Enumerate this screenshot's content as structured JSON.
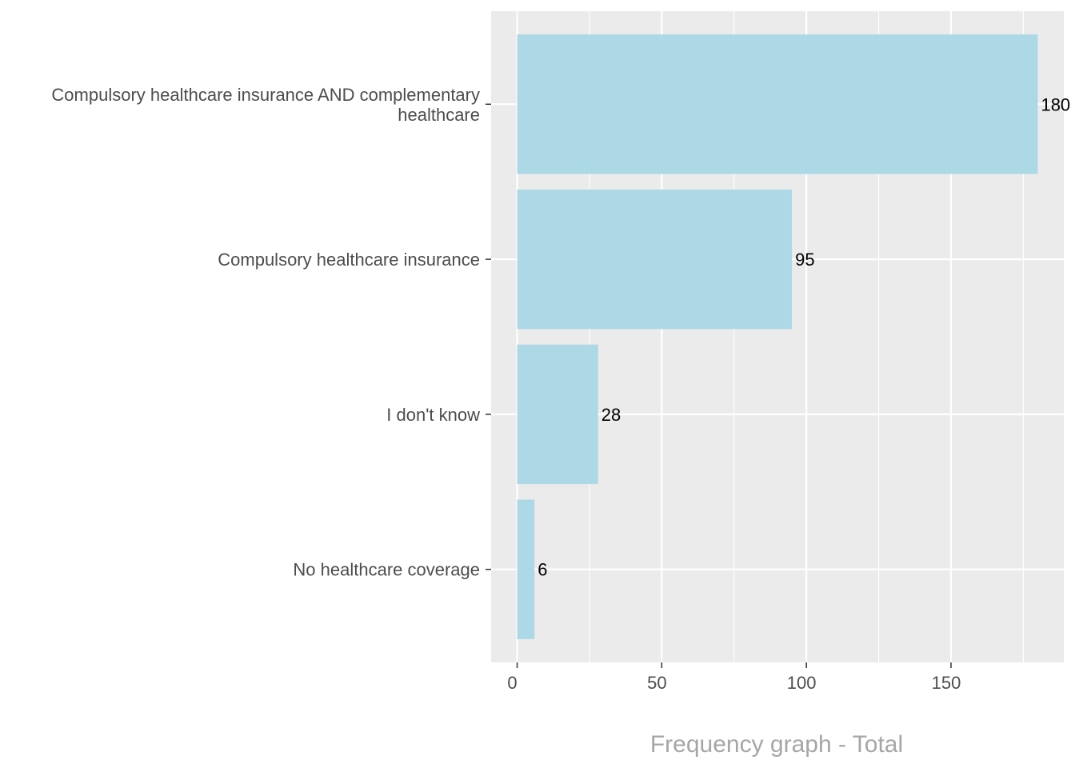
{
  "chart_data": {
    "type": "bar",
    "orientation": "horizontal",
    "title": "",
    "xlabel": "Frequency graph - Total",
    "ylabel": "",
    "categories": [
      "Compulsory healthcare insurance AND complementary healthcare",
      "Compulsory healthcare insurance",
      "I don't know",
      "No healthcare coverage"
    ],
    "values": [
      180,
      95,
      28,
      6
    ],
    "value_labels": [
      "180",
      "95",
      "28",
      "6"
    ],
    "xlim": [
      -9,
      189
    ],
    "xticks": [
      0,
      50,
      100,
      150
    ],
    "xtick_labels": [
      "0",
      "50",
      "100",
      "150"
    ],
    "grid": true,
    "colors": {
      "bar": "#add8e6",
      "panel": "#ebebeb",
      "grid": "#ffffff",
      "axis_text": "#4d4d4d",
      "value_text": "#000000",
      "axis_title": "#a6a6a6"
    }
  }
}
